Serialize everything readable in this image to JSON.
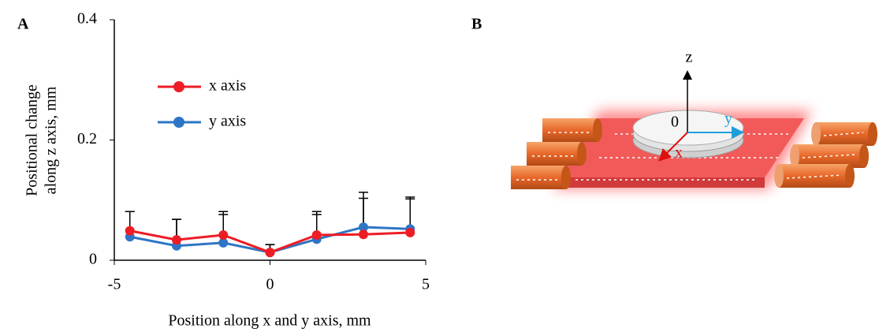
{
  "chart_data": {
    "type": "line",
    "panel_label": "A",
    "xlabel": "Position along x and y axis, mm",
    "ylabel": [
      "Positional change",
      "along z axis, mm"
    ],
    "x": [
      -4.5,
      -3,
      -1.5,
      0,
      1.5,
      3,
      4.5
    ],
    "series": [
      {
        "name": "x axis",
        "color": "#ee1c25",
        "values": [
          0.049,
          0.034,
          0.042,
          0.013,
          0.042,
          0.043,
          0.046
        ],
        "errors": [
          0.032,
          0.034,
          0.039,
          0.013,
          0.039,
          0.06,
          0.056
        ]
      },
      {
        "name": "y axis",
        "color": "#2e75c6",
        "values": [
          0.039,
          0.024,
          0.029,
          0.013,
          0.035,
          0.055,
          0.052
        ],
        "errors": [
          0.042,
          0.044,
          0.047,
          0.013,
          0.041,
          0.058,
          0.053
        ]
      }
    ],
    "xlim": [
      -5,
      5
    ],
    "xticks": [
      -5,
      0,
      5
    ],
    "ylim": [
      0,
      0.4
    ],
    "yticks": [
      0,
      0.2,
      0.4
    ],
    "grid": false
  },
  "diagram": {
    "panel_label": "B",
    "z": "z",
    "origin": "0",
    "y": "y",
    "x": "x"
  }
}
